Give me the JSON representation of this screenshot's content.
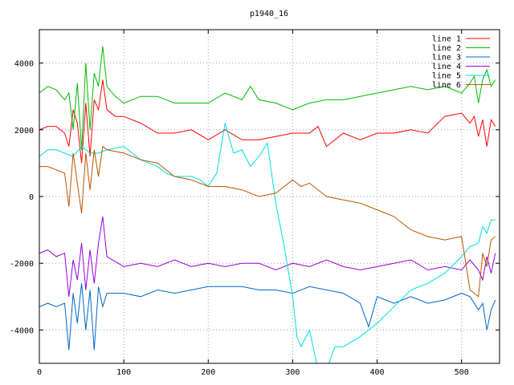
{
  "chart_data": {
    "type": "line",
    "title": "p1940_16",
    "xlabel": "",
    "ylabel": "",
    "xlim": [
      0,
      545
    ],
    "ylim": [
      -5000,
      5000
    ],
    "x_ticks": [
      0,
      100,
      200,
      300,
      400,
      500
    ],
    "y_ticks": [
      -4000,
      -2000,
      0,
      2000,
      4000
    ],
    "grid": true,
    "legend_position": "top-right",
    "series": [
      {
        "name": "line 1",
        "color": "#ff0000",
        "x": [
          0,
          10,
          20,
          30,
          35,
          40,
          45,
          50,
          55,
          60,
          65,
          70,
          75,
          80,
          90,
          100,
          120,
          140,
          160,
          180,
          200,
          220,
          240,
          260,
          280,
          300,
          320,
          330,
          340,
          360,
          380,
          400,
          420,
          440,
          460,
          480,
          500,
          510,
          515,
          520,
          525,
          530,
          535,
          540
        ],
        "y": [
          2000,
          2100,
          2100,
          1900,
          1500,
          2600,
          2200,
          1000,
          2800,
          1200,
          2900,
          2600,
          3500,
          2600,
          2400,
          2400,
          2200,
          1900,
          1900,
          2000,
          1700,
          2000,
          1700,
          1700,
          1800,
          1900,
          1900,
          2100,
          1500,
          1900,
          1700,
          1900,
          1900,
          2000,
          1900,
          2400,
          2500,
          2200,
          2400,
          1800,
          2300,
          1500,
          2300,
          2100
        ]
      },
      {
        "name": "line 2",
        "color": "#00bb00",
        "x": [
          0,
          10,
          20,
          30,
          35,
          40,
          45,
          50,
          55,
          60,
          65,
          70,
          75,
          80,
          90,
          100,
          120,
          140,
          160,
          180,
          200,
          220,
          240,
          250,
          260,
          280,
          300,
          320,
          340,
          360,
          380,
          400,
          420,
          440,
          460,
          480,
          500,
          510,
          515,
          520,
          525,
          530,
          535,
          540
        ],
        "y": [
          3100,
          3300,
          3200,
          2900,
          3100,
          2000,
          3400,
          1400,
          4000,
          2000,
          3700,
          3300,
          4500,
          3300,
          3000,
          2800,
          3000,
          3000,
          2800,
          2800,
          2800,
          3100,
          2900,
          3300,
          2900,
          2800,
          2600,
          2800,
          2900,
          2900,
          3000,
          3100,
          3200,
          3300,
          3200,
          3300,
          3100,
          3400,
          3600,
          2800,
          3500,
          3800,
          3300,
          3500
        ]
      },
      {
        "name": "line 3",
        "color": "#0066cc",
        "x": [
          0,
          10,
          20,
          30,
          35,
          40,
          45,
          50,
          55,
          60,
          65,
          70,
          75,
          80,
          100,
          120,
          140,
          160,
          180,
          200,
          220,
          240,
          260,
          280,
          300,
          320,
          340,
          360,
          380,
          390,
          400,
          420,
          440,
          460,
          480,
          500,
          510,
          520,
          525,
          530,
          535,
          540
        ],
        "y": [
          -3300,
          -3200,
          -3300,
          -3200,
          -4600,
          -2900,
          -3800,
          -2600,
          -4000,
          -2800,
          -4600,
          -2700,
          -3300,
          -2900,
          -2900,
          -3000,
          -2800,
          -2900,
          -2800,
          -2700,
          -2700,
          -2700,
          -2800,
          -2800,
          -2900,
          -2700,
          -2800,
          -2900,
          -3200,
          -3900,
          -3000,
          -3200,
          -3000,
          -3200,
          -3100,
          -2900,
          -3000,
          -3400,
          -3200,
          -4000,
          -3400,
          -3100
        ]
      },
      {
        "name": "line 4",
        "color": "#9900dd",
        "x": [
          0,
          10,
          20,
          30,
          35,
          40,
          45,
          50,
          55,
          60,
          65,
          70,
          75,
          80,
          100,
          120,
          140,
          160,
          180,
          200,
          220,
          240,
          260,
          280,
          300,
          320,
          340,
          360,
          380,
          400,
          420,
          440,
          460,
          480,
          500,
          510,
          520,
          525,
          530,
          535,
          540
        ],
        "y": [
          -1700,
          -1600,
          -1800,
          -1700,
          -3000,
          -1900,
          -2500,
          -1400,
          -2800,
          -1600,
          -2600,
          -1400,
          -600,
          -1800,
          -2100,
          -2000,
          -2100,
          -1900,
          -2100,
          -2000,
          -2100,
          -2000,
          -2000,
          -2200,
          -2000,
          -2100,
          -1900,
          -2100,
          -2200,
          -2100,
          -2000,
          -1900,
          -2200,
          -2100,
          -2200,
          -1900,
          -2200,
          -2500,
          -1800,
          -2300,
          -1700
        ]
      },
      {
        "name": "line 5",
        "color": "#00dddd",
        "x": [
          0,
          10,
          20,
          30,
          40,
          50,
          60,
          70,
          80,
          100,
          120,
          140,
          150,
          160,
          170,
          180,
          190,
          200,
          210,
          220,
          230,
          240,
          250,
          260,
          270,
          280,
          290,
          300,
          305,
          310,
          320,
          330,
          340,
          350,
          360,
          380,
          400,
          420,
          440,
          460,
          480,
          500,
          510,
          520,
          525,
          530,
          535,
          540
        ],
        "y": [
          1200,
          1400,
          1400,
          1300,
          1200,
          1500,
          1300,
          1300,
          1400,
          1500,
          1100,
          900,
          700,
          600,
          600,
          600,
          500,
          300,
          700,
          2200,
          1300,
          1400,
          900,
          1200,
          1600,
          -200,
          -1500,
          -3000,
          -4200,
          -4500,
          -4000,
          -5200,
          -5200,
          -4500,
          -4500,
          -4200,
          -3800,
          -3300,
          -2800,
          -2600,
          -2300,
          -1800,
          -1500,
          -1400,
          -900,
          -1100,
          -700,
          -700
        ]
      },
      {
        "name": "line 6",
        "color": "#bb5500",
        "x": [
          0,
          10,
          20,
          30,
          35,
          40,
          45,
          50,
          55,
          60,
          65,
          70,
          75,
          80,
          100,
          120,
          140,
          160,
          180,
          200,
          220,
          240,
          260,
          280,
          300,
          310,
          320,
          340,
          360,
          380,
          400,
          420,
          440,
          460,
          480,
          500,
          510,
          520,
          525,
          530,
          535,
          540
        ],
        "y": [
          900,
          900,
          800,
          700,
          -300,
          1300,
          400,
          -500,
          1300,
          200,
          1400,
          600,
          1500,
          1400,
          1300,
          1100,
          1000,
          600,
          500,
          300,
          300,
          200,
          0,
          100,
          500,
          300,
          400,
          0,
          -100,
          -200,
          -400,
          -600,
          -1000,
          -1200,
          -1300,
          -1200,
          -2800,
          -3000,
          -1700,
          -2100,
          -1300,
          -1200
        ]
      }
    ]
  }
}
